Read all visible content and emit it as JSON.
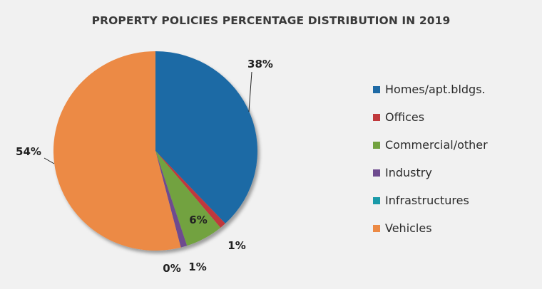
{
  "chart_data": {
    "type": "pie",
    "title": "PROPERTY POLICIES PERCENTAGE DISTRIBUTION IN 2019",
    "categories": [
      "Homes/apt.bldgs.",
      "Offices",
      "Commercial/other",
      "Industry",
      "Infrastructures",
      "Vehicles"
    ],
    "values": [
      38,
      1,
      6,
      1,
      0,
      54
    ],
    "data_labels": [
      "38%",
      "1%",
      "6%",
      "1%",
      "0%",
      "54%"
    ],
    "colors": [
      "#1f6aa5",
      "#c0393c",
      "#72a23f",
      "#6e4b8f",
      "#1a9aa8",
      "#ec8a45"
    ],
    "legend_position": "right",
    "grid": false
  }
}
